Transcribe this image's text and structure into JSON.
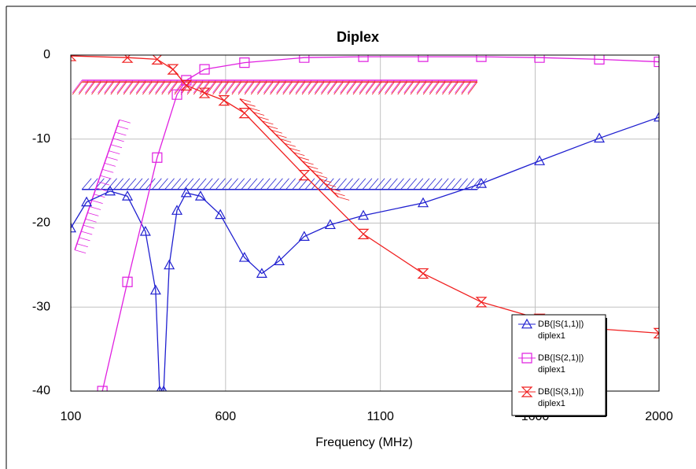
{
  "chart_data": {
    "type": "line",
    "title": "Diplex",
    "x_label": "Frequency (MHz)",
    "xlim": [
      100,
      2000
    ],
    "xticks": [
      100,
      600,
      1100,
      1600,
      2000
    ],
    "ylim": [
      -40,
      0
    ],
    "yticks": [
      0,
      -10,
      -20,
      -30,
      -40
    ],
    "grid": true,
    "legend": "lower right",
    "series": [
      {
        "name": "DB(|S(1,1)|)",
        "subname": "diplex1",
        "color": "#2020d0",
        "marker": "triangle",
        "x": [
          100,
          151,
          227,
          283,
          341,
          374,
          387,
          400,
          418,
          443,
          473,
          519,
          583,
          661,
          717,
          773,
          854,
          938,
          1045,
          1238,
          1426,
          1614,
          1807,
          2000
        ],
        "values": [
          -20.6,
          -17.5,
          -16.2,
          -16.8,
          -21,
          -28,
          -40,
          -40,
          -25,
          -18.5,
          -16.4,
          -16.8,
          -19,
          -24.1,
          -26.0,
          -24.5,
          -21.6,
          -20.2,
          -19.1,
          -17.6,
          -15.3,
          -12.6,
          -9.9,
          -7.4
        ]
      },
      {
        "name": "DB(|S(2,1)|)",
        "subname": "diplex1",
        "color": "#e020e0",
        "marker": "square",
        "x": [
          202,
          283,
          379,
          443,
          473,
          532,
          661,
          854,
          1045,
          1238,
          1426,
          1614,
          1807,
          2000
        ],
        "values": [
          -40,
          -27.0,
          -12.2,
          -4.7,
          -3.0,
          -1.7,
          -0.9,
          -0.3,
          -0.2,
          -0.2,
          -0.2,
          -0.3,
          -0.5,
          -0.8
        ]
      },
      {
        "name": "DB(|S(3,1)|)",
        "subname": "diplex1",
        "color": "#f02020",
        "marker": "hourglass",
        "x": [
          100,
          283,
          379,
          430,
          473,
          532,
          595,
          661,
          854,
          1045,
          1238,
          1426,
          1614,
          1807,
          2000
        ],
        "values": [
          -0.1,
          -0.3,
          -0.5,
          -1.7,
          -3.6,
          -4.5,
          -5.4,
          -6.9,
          -14.3,
          -21.3,
          -26.0,
          -29.4,
          -31.4,
          -32.6,
          -33.1
        ]
      }
    ],
    "goals": [
      {
        "x": [
          136,
          1413
        ],
        "y": [
          -16,
          -16
        ],
        "color": "#2020d0",
        "hatch": "above"
      },
      {
        "x": [
          136,
          1413
        ],
        "y": [
          -3,
          -3
        ],
        "color": "#e020e0",
        "hatch": "below"
      },
      {
        "x": [
          136,
          1413
        ],
        "y": [
          -3.2,
          -3.2
        ],
        "color": "#f02020",
        "hatch": "below"
      },
      {
        "x": [
          646,
          964
        ],
        "y": [
          -5.2,
          -16.9
        ],
        "color": "#f02020",
        "hatch": "right"
      },
      {
        "x": [
          113,
          257
        ],
        "y": [
          -23.2,
          -7.7
        ],
        "color": "#e020e0",
        "hatch": "right"
      }
    ]
  }
}
